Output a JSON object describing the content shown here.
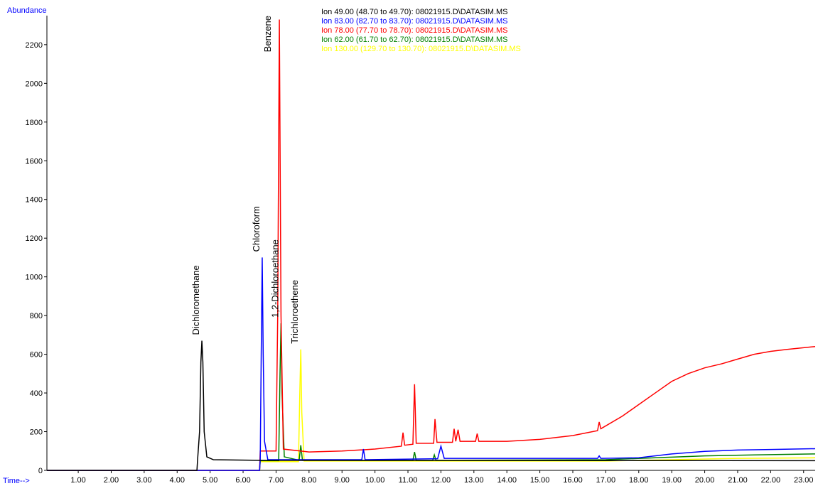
{
  "chart_data": {
    "type": "line",
    "ylabel": "Abundance",
    "xlabel": "Time-->",
    "xlim": [
      0.05,
      23.35
    ],
    "ylim": [
      0,
      2350
    ],
    "xticks": [
      {
        "value": 1,
        "label": "1.00"
      },
      {
        "value": 2,
        "label": "2.00"
      },
      {
        "value": 3,
        "label": "3.00"
      },
      {
        "value": 4,
        "label": "4.00"
      },
      {
        "value": 5,
        "label": "5.00"
      },
      {
        "value": 6,
        "label": "6.00"
      },
      {
        "value": 7,
        "label": "7.00"
      },
      {
        "value": 8,
        "label": "8.00"
      },
      {
        "value": 9,
        "label": "9.00"
      },
      {
        "value": 10,
        "label": "10.00"
      },
      {
        "value": 11,
        "label": "11.00"
      },
      {
        "value": 12,
        "label": "12.00"
      },
      {
        "value": 13,
        "label": "13.00"
      },
      {
        "value": 14,
        "label": "14.00"
      },
      {
        "value": 15,
        "label": "15.00"
      },
      {
        "value": 16,
        "label": "16.00"
      },
      {
        "value": 17,
        "label": "17.00"
      },
      {
        "value": 18,
        "label": "18.00"
      },
      {
        "value": 19,
        "label": "19.00"
      },
      {
        "value": 20,
        "label": "20.00"
      },
      {
        "value": 21,
        "label": "21.00"
      },
      {
        "value": 22,
        "label": "22.00"
      },
      {
        "value": 23,
        "label": "23.00"
      }
    ],
    "yticks": [
      0,
      200,
      400,
      600,
      800,
      1000,
      1200,
      1400,
      1600,
      1800,
      2000,
      2200
    ],
    "series": [
      {
        "name": "Ion 49.00 (48.70 to 49.70): 08021915.D\\DATASIM.MS",
        "color": "#000000",
        "x": [
          0.05,
          4.6,
          4.62,
          4.68,
          4.72,
          4.75,
          4.78,
          4.82,
          4.9,
          5.1,
          6.5,
          23.35
        ],
        "values": [
          0,
          0,
          55,
          200,
          560,
          670,
          560,
          200,
          70,
          55,
          52,
          50
        ]
      },
      {
        "name": "Ion 83.00 (82.70 to 83.70): 08021915.D\\DATASIM.MS",
        "color": "#0000ff",
        "x": [
          0.05,
          6.5,
          6.52,
          6.55,
          6.58,
          6.61,
          6.65,
          6.75,
          9.6,
          9.65,
          9.7,
          11.9,
          12.0,
          12.1,
          16.75,
          16.8,
          16.85,
          18.0,
          19.0,
          20.0,
          21.0,
          22.0,
          23.35
        ],
        "values": [
          0,
          0,
          55,
          600,
          1100,
          600,
          150,
          55,
          55,
          110,
          55,
          60,
          125,
          62,
          62,
          75,
          62,
          65,
          85,
          98,
          105,
          108,
          112
        ]
      },
      {
        "name": "Ion 78.00 (77.70 to 78.70): 08021915.D\\DATASIM.MS",
        "color": "#ff0000",
        "x": [
          0.05,
          6.5,
          6.52,
          7.0,
          7.05,
          7.1,
          7.15,
          7.22,
          8.0,
          9.0,
          10.0,
          10.8,
          10.85,
          10.9,
          11.15,
          11.2,
          11.25,
          11.78,
          11.82,
          11.88,
          12.35,
          12.4,
          12.45,
          12.52,
          12.58,
          13.05,
          13.1,
          13.15,
          14.0,
          15.0,
          16.0,
          16.75,
          16.8,
          16.85,
          17.5,
          18.0,
          18.5,
          19.0,
          19.5,
          20.0,
          20.5,
          21.0,
          21.5,
          22.0,
          22.5,
          23.35
        ],
        "values": [
          0,
          0,
          100,
          100,
          800,
          2330,
          800,
          110,
          95,
          100,
          110,
          125,
          195,
          130,
          135,
          445,
          140,
          140,
          265,
          145,
          145,
          215,
          150,
          210,
          150,
          150,
          190,
          150,
          150,
          160,
          180,
          205,
          250,
          215,
          280,
          340,
          400,
          460,
          500,
          530,
          550,
          575,
          600,
          615,
          625,
          640
        ]
      },
      {
        "name": "Ion 62.00 (61.70 to 62.70): 08021915.D\\DATASIM.MS",
        "color": "#008000",
        "x": [
          0.05,
          6.5,
          6.52,
          7.08,
          7.12,
          7.15,
          7.18,
          7.25,
          7.7,
          7.75,
          7.8,
          11.15,
          11.2,
          11.25,
          11.75,
          11.8,
          11.85,
          17.0,
          18.5,
          20.0,
          21.5,
          23.35
        ],
        "values": [
          0,
          0,
          50,
          50,
          500,
          760,
          400,
          70,
          52,
          130,
          52,
          52,
          95,
          52,
          52,
          80,
          52,
          55,
          65,
          75,
          80,
          85
        ]
      },
      {
        "name": "Ion 130.00 (129.70 to 130.70): 08021915.D\\DATASIM.MS",
        "color": "#ffff00",
        "x": [
          0.05,
          6.5,
          6.52,
          7.68,
          7.72,
          7.75,
          7.78,
          7.85,
          17.0,
          19.0,
          21.0,
          23.35
        ],
        "values": [
          0,
          0,
          45,
          45,
          400,
          625,
          300,
          48,
          48,
          55,
          62,
          65
        ]
      }
    ],
    "annotations": [
      {
        "text": "Dichloromethane",
        "x": 4.75,
        "y": 670
      },
      {
        "text": "Chloroform",
        "x": 6.58,
        "y": 1100
      },
      {
        "text": "Benzene",
        "x": 7.1,
        "y": 2330
      },
      {
        "text": "1,2-Dichloroethane",
        "x": 7.15,
        "y": 760
      },
      {
        "text": "Trichloroethene",
        "x": 7.75,
        "y": 625
      }
    ]
  }
}
